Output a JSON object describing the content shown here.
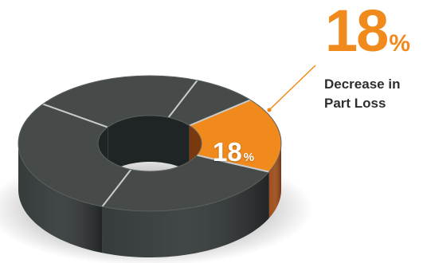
{
  "headline": {
    "value": "18",
    "unit": "%"
  },
  "callout": {
    "line1": "Decrease in",
    "line2": "Part Loss"
  },
  "slice_label": {
    "value": "18",
    "unit": "%"
  },
  "colors": {
    "highlight": "#f08a1c",
    "highlight_dark": "#9a4612",
    "slice_top": "#464b4a",
    "slice_side": "#2c3131",
    "separator": "#c9cccb",
    "callout_line": "#f08a1c",
    "label_text": "#2e2e2e"
  },
  "chart_data": {
    "type": "pie",
    "style": "3d-donut",
    "slices": [
      {
        "label": "18%",
        "value": 18,
        "highlighted": true
      },
      {
        "value": 24,
        "highlighted": false
      },
      {
        "value": 29,
        "highlighted": false
      },
      {
        "value": 21,
        "highlighted": false
      },
      {
        "value": 8,
        "highlighted": false
      }
    ]
  }
}
